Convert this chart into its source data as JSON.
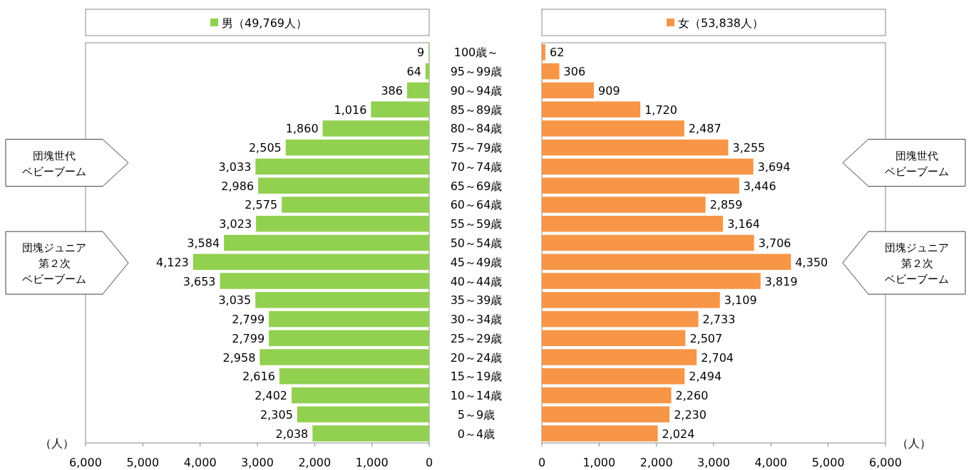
{
  "chart_data": [
    {
      "type": "bar",
      "orientation": "horizontal",
      "legend": "top",
      "xlabel": "（人）",
      "categories": [
        "100歳～",
        "95～99歳",
        "90～94歳",
        "85～89歳",
        "80～84歳",
        "75～79歳",
        "70～74歳",
        "65～69歳",
        "60～64歳",
        "55～59歳",
        "50～54歳",
        "45～49歳",
        "40～44歳",
        "35～39歳",
        "30～34歳",
        "25～29歳",
        "20～24歳",
        "15～19歳",
        "10～14歳",
        "5～9歳",
        "0～4歳"
      ],
      "series": [
        {
          "name": "男（49,769人）",
          "color": "#92d050",
          "values": [
            9,
            64,
            386,
            1016,
            1860,
            2505,
            3033,
            2986,
            2575,
            3023,
            3584,
            4123,
            3653,
            3035,
            2799,
            2799,
            2958,
            2616,
            2402,
            2305,
            2038
          ],
          "value_labels": [
            "9",
            "64",
            "386",
            "1,016",
            "1,860",
            "2,505",
            "3,033",
            "2,986",
            "2,575",
            "3,023",
            "3,584",
            "4,123",
            "3,653",
            "3,035",
            "2,799",
            "2,799",
            "2,958",
            "2,616",
            "2,402",
            "2,305",
            "2,038"
          ]
        }
      ],
      "xlim": [
        6000,
        0
      ],
      "xticks": [
        {
          "value": 6000,
          "label": "6,000"
        },
        {
          "value": 5000,
          "label": "5,000"
        },
        {
          "value": 4000,
          "label": "4,000"
        },
        {
          "value": 3000,
          "label": "3,000"
        },
        {
          "value": 2000,
          "label": "2,000"
        },
        {
          "value": 1000,
          "label": "1,000"
        },
        0
      ],
      "annotations": [
        "団塊世代ベビーブーム",
        "団塊ジュニア第２次ベビーブーム"
      ]
    },
    {
      "type": "bar",
      "orientation": "horizontal",
      "legend": "top",
      "xlabel": "（人）",
      "tick_labels": "x",
      "categories": [
        "100歳～",
        "95～99歳",
        "90～94歳",
        "85～89歳",
        "80～84歳",
        "75～79歳",
        "70～74歳",
        "65～69歳",
        "60～64歳",
        "55～59歳",
        "50～54歳",
        "45～49歳",
        "40～44歳",
        "35～39歳",
        "30～34歳",
        "25～29歳",
        "20～24歳",
        "15～19歳",
        "10～14歳",
        "5～9歳",
        "0～4歳"
      ],
      "series": [
        {
          "name": "女（53,838人）",
          "color": "#f79646",
          "values": [
            62,
            306,
            909,
            1720,
            2487,
            3255,
            3694,
            3446,
            2859,
            3164,
            3706,
            4350,
            3819,
            3109,
            2733,
            2507,
            2704,
            2494,
            2260,
            2230,
            2024
          ],
          "value_labels": [
            "62",
            "306",
            "909",
            "1,720",
            "2,487",
            "3,255",
            "3,694",
            "3,446",
            "2,859",
            "3,164",
            "3,706",
            "4,350",
            "3,819",
            "3,109",
            "2,733",
            "2,507",
            "2,704",
            "2,494",
            "2,260",
            "2,230",
            "2,024"
          ]
        }
      ],
      "xlim": [
        0,
        6000
      ],
      "xticks": [
        0,
        {
          "value": 1000,
          "label": "1,000"
        },
        {
          "value": 2000,
          "label": "2,000"
        },
        {
          "value": 3000,
          "label": "3,000"
        },
        {
          "value": 4000,
          "label": "4,000"
        },
        {
          "value": 5000,
          "label": "5,000"
        },
        {
          "value": 6000,
          "label": "6,000"
        }
      ],
      "annotations": [
        "団塊世代ベビーブーム",
        "団塊ジュニア第２次ベビーブーム"
      ]
    }
  ]
}
